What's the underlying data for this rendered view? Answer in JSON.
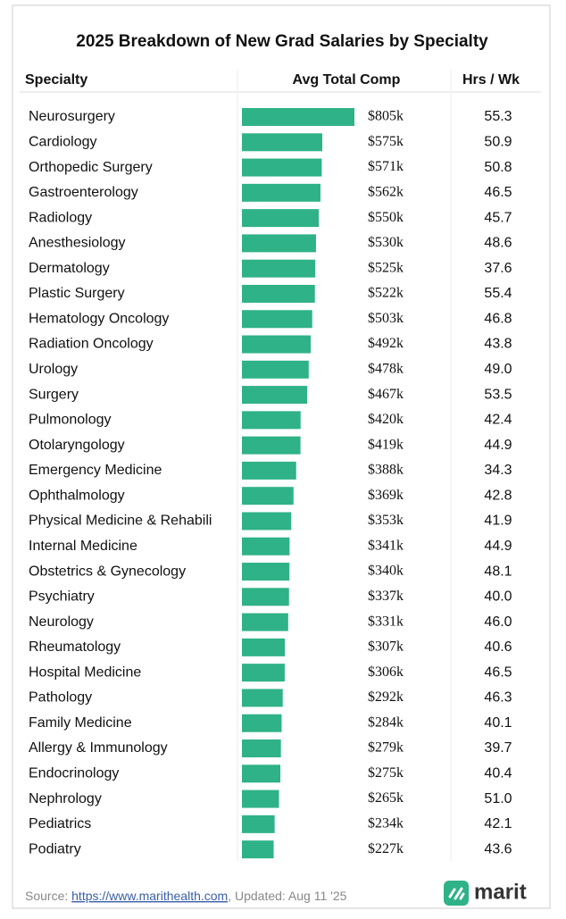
{
  "chart_data": {
    "type": "bar",
    "title": "2025 Breakdown of New Grad Salaries by Specialty",
    "columns": [
      "Specialty",
      "Avg Total Comp",
      "Hrs / Wk"
    ],
    "categories": [
      "Neurosurgery",
      "Cardiology",
      "Orthopedic Surgery",
      "Gastroenterology",
      "Radiology",
      "Anesthesiology",
      "Dermatology",
      "Plastic Surgery",
      "Hematology Oncology",
      "Radiation Oncology",
      "Urology",
      "Surgery",
      "Pulmonology",
      "Otolaryngology",
      "Emergency Medicine",
      "Ophthalmology",
      "Physical Medicine & Rehabili",
      "Internal Medicine",
      "Obstetrics & Gynecology",
      "Psychiatry",
      "Neurology",
      "Rheumatology",
      "Hospital Medicine",
      "Pathology",
      "Family Medicine",
      "Allergy & Immunology",
      "Endocrinology",
      "Nephrology",
      "Pediatrics",
      "Podiatry"
    ],
    "values": [
      805,
      575,
      571,
      562,
      550,
      530,
      525,
      522,
      503,
      492,
      478,
      467,
      420,
      419,
      388,
      369,
      353,
      341,
      340,
      337,
      331,
      307,
      306,
      292,
      284,
      279,
      275,
      265,
      234,
      227
    ],
    "value_labels": [
      "$805k",
      "$575k",
      "$571k",
      "$562k",
      "$550k",
      "$530k",
      "$525k",
      "$522k",
      "$503k",
      "$492k",
      "$478k",
      "$467k",
      "$420k",
      "$419k",
      "$388k",
      "$369k",
      "$353k",
      "$341k",
      "$340k",
      "$337k",
      "$331k",
      "$307k",
      "$306k",
      "$292k",
      "$284k",
      "$279k",
      "$275k",
      "$265k",
      "$234k",
      "$227k"
    ],
    "hours": [
      "55.3",
      "50.9",
      "50.8",
      "46.5",
      "45.7",
      "48.6",
      "37.6",
      "55.4",
      "46.8",
      "43.8",
      "49.0",
      "53.5",
      "42.4",
      "44.9",
      "34.3",
      "42.8",
      "41.9",
      "44.9",
      "48.1",
      "40.0",
      "46.0",
      "40.6",
      "46.5",
      "46.3",
      "40.1",
      "39.7",
      "40.4",
      "51.0",
      "42.1",
      "43.6"
    ],
    "color": "#2fb287",
    "footer": {
      "prefix": "Source: ",
      "url": "https://www.marithealth.com",
      "suffix": ", Updated: Aug 11 '25",
      "brand": "marit"
    }
  }
}
